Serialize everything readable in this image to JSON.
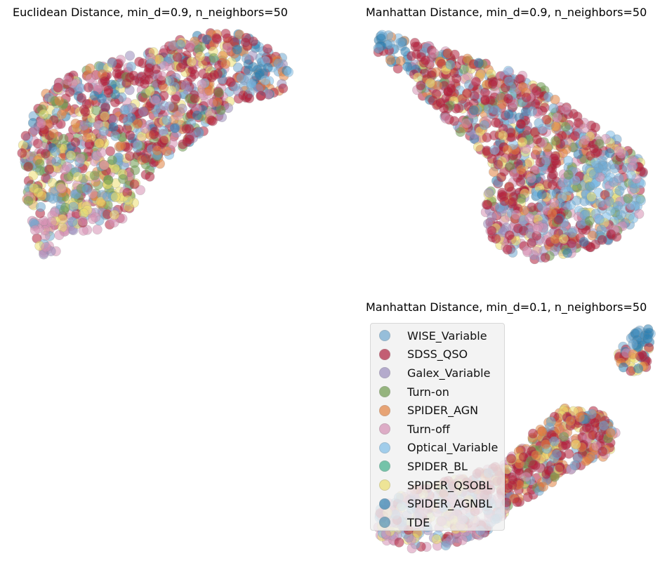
{
  "chart_data": [
    {
      "type": "scatter",
      "title": "Euclidean Distance, min_d=0.9, n_neighbors=50",
      "xlabel": "",
      "ylabel": "",
      "axes": "off",
      "grid": false
    },
    {
      "type": "scatter",
      "title": "Manhattan Distance, min_d=0.9, n_neighbors=50",
      "xlabel": "",
      "ylabel": "",
      "axes": "off",
      "grid": false
    },
    {
      "type": "scatter",
      "title": "Manhattan Distance, min_d=0.1, n_neighbors=50",
      "xlabel": "",
      "ylabel": "",
      "axes": "off",
      "grid": false,
      "legend_position": "upper-left"
    }
  ],
  "legend": {
    "items": [
      {
        "label": "WISE_Variable",
        "color": "#6fa8d0"
      },
      {
        "label": "SDSS_QSO",
        "color": "#b0203d"
      },
      {
        "label": "Galex_Variable",
        "color": "#9a8cbc"
      },
      {
        "label": "Turn-on",
        "color": "#6e9a4e"
      },
      {
        "label": "SPIDER_AGN",
        "color": "#e2823f"
      },
      {
        "label": "Turn-off",
        "color": "#d58fb3"
      },
      {
        "label": "Optical_Variable",
        "color": "#7fbde8"
      },
      {
        "label": "SPIDER_BL",
        "color": "#3fb08a"
      },
      {
        "label": "SPIDER_QSOBL",
        "color": "#eddf6f"
      },
      {
        "label": "SPIDER_AGNBL",
        "color": "#2f7fb0"
      },
      {
        "label": "TDE",
        "color": "#4f90b0"
      }
    ]
  }
}
